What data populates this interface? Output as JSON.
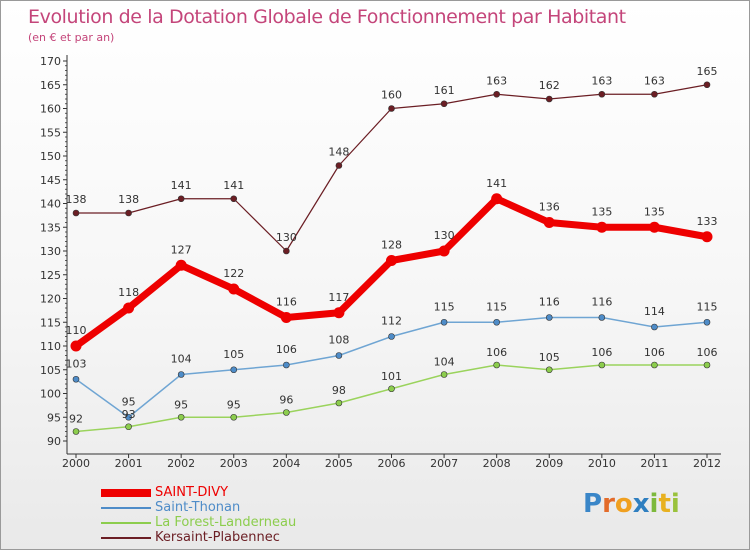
{
  "title": "Evolution de la Dotation Globale de Fonctionnement par Habitant",
  "subtitle": "(en € et par an)",
  "brand": {
    "letters": [
      "P",
      "r",
      "o",
      "x",
      "i",
      "t",
      "i"
    ],
    "colors": [
      "#3a86c8",
      "#e36b2a",
      "#f0a020",
      "#2f7fc0",
      "#7db93c",
      "#e8b120",
      "#9ac23c"
    ]
  },
  "chart_data": {
    "type": "line",
    "title": "Evolution de la Dotation Globale de Fonctionnement par Habitant",
    "subtitle": "(en € et par an)",
    "xlabel": "",
    "ylabel": "",
    "x": [
      "2000",
      "2001",
      "2002",
      "2003",
      "2004",
      "2005",
      "2006",
      "2007",
      "2008",
      "2009",
      "2010",
      "2011",
      "2012"
    ],
    "ylim": [
      90,
      170
    ],
    "yticks": [
      90,
      95,
      100,
      105,
      110,
      115,
      120,
      125,
      130,
      135,
      140,
      145,
      150,
      155,
      160,
      165,
      170
    ],
    "grid": false,
    "legend_position": "bottom-left",
    "series": [
      {
        "name": "Kersaint-Plabennec",
        "color": "#6b1e24",
        "marker": "#6b1e24",
        "width": 1.2,
        "values": [
          138,
          138,
          141,
          141,
          130,
          148,
          160,
          161,
          163,
          162,
          163,
          163,
          165
        ]
      },
      {
        "name": "La Forest-Landerneau",
        "color": "#9ad35c",
        "marker": "#8ccd4d",
        "width": 1.5,
        "values": [
          92,
          93,
          95,
          95,
          96,
          98,
          101,
          104,
          106,
          105,
          106,
          106,
          106
        ]
      },
      {
        "name": "Saint-Thonan",
        "color": "#6fa5d3",
        "marker": "#4e8cc8",
        "width": 1.5,
        "values": [
          103,
          95,
          104,
          105,
          106,
          108,
          112,
          115,
          115,
          116,
          116,
          114,
          115
        ]
      },
      {
        "name": "SAINT-DIVY",
        "color": "#ee0000",
        "marker": "#ee0000",
        "width": 7,
        "values": [
          110,
          118,
          127,
          122,
          116,
          117,
          128,
          130,
          141,
          136,
          135,
          135,
          133
        ]
      }
    ],
    "legend_order": [
      "SAINT-DIVY",
      "Saint-Thonan",
      "La Forest-Landerneau",
      "Kersaint-Plabennec"
    ],
    "legend_colors": {
      "SAINT-DIVY": "#ee0000",
      "Saint-Thonan": "#4e8cc8",
      "La Forest-Landerneau": "#8ccd4d",
      "Kersaint-Plabennec": "#6b1e24"
    }
  }
}
